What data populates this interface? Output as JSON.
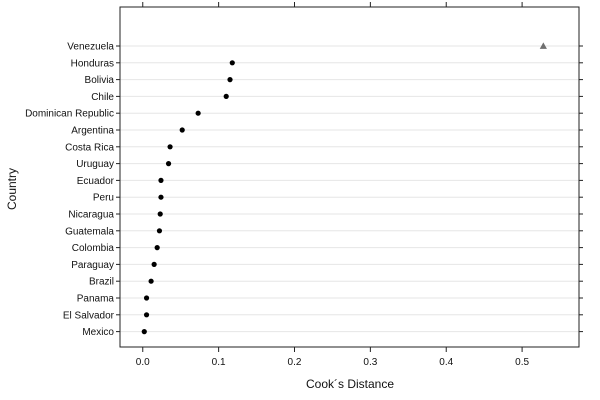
{
  "chart_data": {
    "type": "scatter",
    "title": "",
    "xlabel": "Cook´s Distance",
    "ylabel": "Country",
    "xlim": [
      -0.03,
      0.575
    ],
    "x_ticks": [
      0.0,
      0.1,
      0.2,
      0.3,
      0.4,
      0.5
    ],
    "x_tick_labels": [
      "0.0",
      "0.1",
      "0.2",
      "0.3",
      "0.4",
      "0.5"
    ],
    "grid": "horizontal",
    "point_color": "#000000",
    "outlier_color": "#6f6f6f",
    "points": [
      {
        "country": "Venezuela",
        "value": 0.528,
        "marker": "triangle"
      },
      {
        "country": "Honduras",
        "value": 0.118,
        "marker": "circle"
      },
      {
        "country": "Bolivia",
        "value": 0.115,
        "marker": "circle"
      },
      {
        "country": "Chile",
        "value": 0.11,
        "marker": "circle"
      },
      {
        "country": "Dominican Republic",
        "value": 0.073,
        "marker": "circle"
      },
      {
        "country": "Argentina",
        "value": 0.052,
        "marker": "circle"
      },
      {
        "country": "Costa Rica",
        "value": 0.036,
        "marker": "circle"
      },
      {
        "country": "Uruguay",
        "value": 0.034,
        "marker": "circle"
      },
      {
        "country": "Ecuador",
        "value": 0.024,
        "marker": "circle"
      },
      {
        "country": "Peru",
        "value": 0.024,
        "marker": "circle"
      },
      {
        "country": "Nicaragua",
        "value": 0.023,
        "marker": "circle"
      },
      {
        "country": "Guatemala",
        "value": 0.022,
        "marker": "circle"
      },
      {
        "country": "Colombia",
        "value": 0.019,
        "marker": "circle"
      },
      {
        "country": "Paraguay",
        "value": 0.015,
        "marker": "circle"
      },
      {
        "country": "Brazil",
        "value": 0.011,
        "marker": "circle"
      },
      {
        "country": "Panama",
        "value": 0.005,
        "marker": "circle"
      },
      {
        "country": "El Salvador",
        "value": 0.005,
        "marker": "circle"
      },
      {
        "country": "Mexico",
        "value": 0.002,
        "marker": "circle"
      }
    ]
  }
}
